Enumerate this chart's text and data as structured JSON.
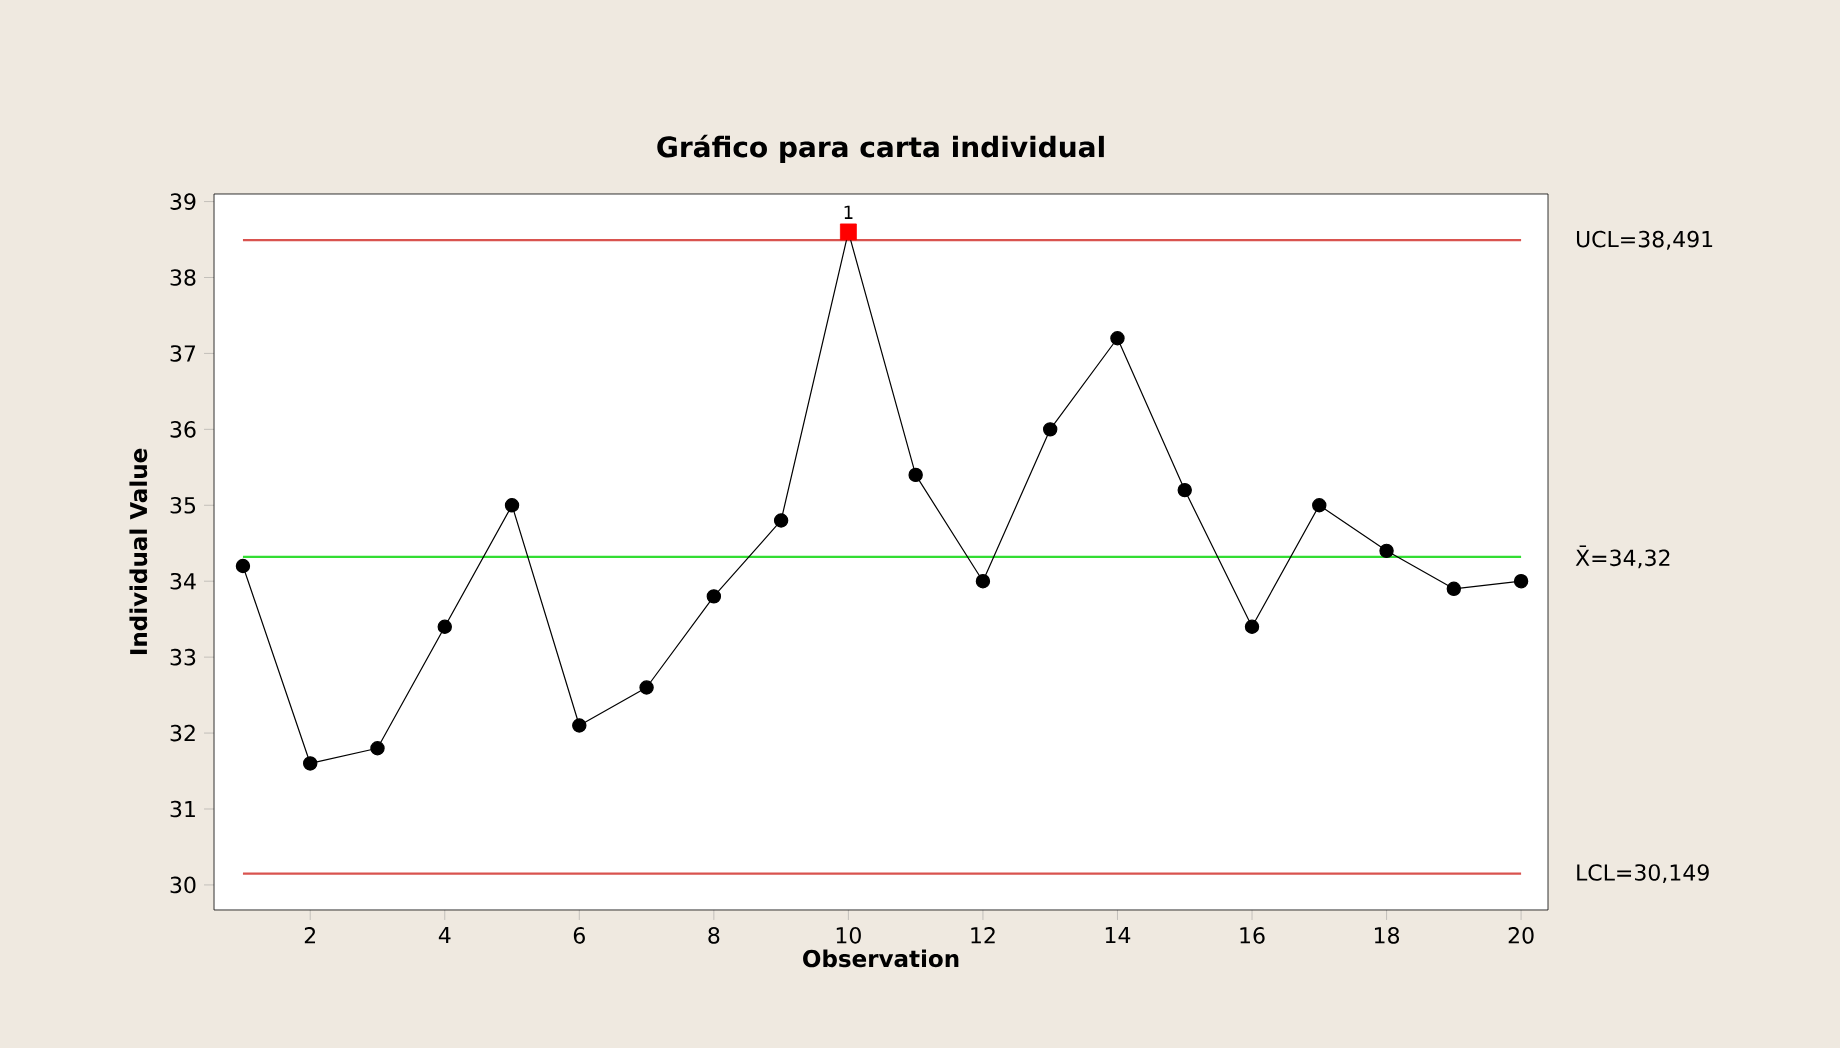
{
  "chart_data": {
    "type": "line",
    "title": "Gráfico para carta individual",
    "xlabel": "Observation",
    "ylabel": "Individual Value",
    "x": [
      1,
      2,
      3,
      4,
      5,
      6,
      7,
      8,
      9,
      10,
      11,
      12,
      13,
      14,
      15,
      16,
      17,
      18,
      19,
      20
    ],
    "series": [
      {
        "color": "#000000",
        "marker": "circle",
        "values": [
          34.2,
          31.6,
          31.8,
          33.4,
          35.0,
          32.1,
          32.6,
          33.8,
          34.8,
          38.6,
          35.4,
          34.0,
          36.0,
          37.2,
          35.2,
          33.4,
          35.0,
          34.4,
          33.9,
          34.0
        ]
      },
      {
        "type": "scatter",
        "color": "#ff0000",
        "marker": "square",
        "x": [
          10
        ],
        "values": [
          38.6
        ]
      }
    ],
    "annotations": [
      {
        "text": "1",
        "x": 10,
        "y": 38.6
      }
    ],
    "ref_lines": [
      {
        "axis": "y",
        "value": 38.491,
        "label": "UCL=38,491",
        "color": "#d9534f"
      },
      {
        "axis": "y",
        "value": 34.32,
        "label": "X̄=34,32",
        "color": "#33dd33"
      },
      {
        "axis": "y",
        "value": 30.149,
        "label": "LCL=30,149",
        "color": "#d9534f"
      }
    ],
    "xlim": [
      0.57,
      20.4
    ],
    "ylim": [
      29.67,
      39.1
    ],
    "xticks": [
      2,
      4,
      6,
      8,
      10,
      12,
      14,
      16,
      18,
      20
    ],
    "yticks": [
      30,
      31,
      32,
      33,
      34,
      35,
      36,
      37,
      38,
      39
    ]
  }
}
